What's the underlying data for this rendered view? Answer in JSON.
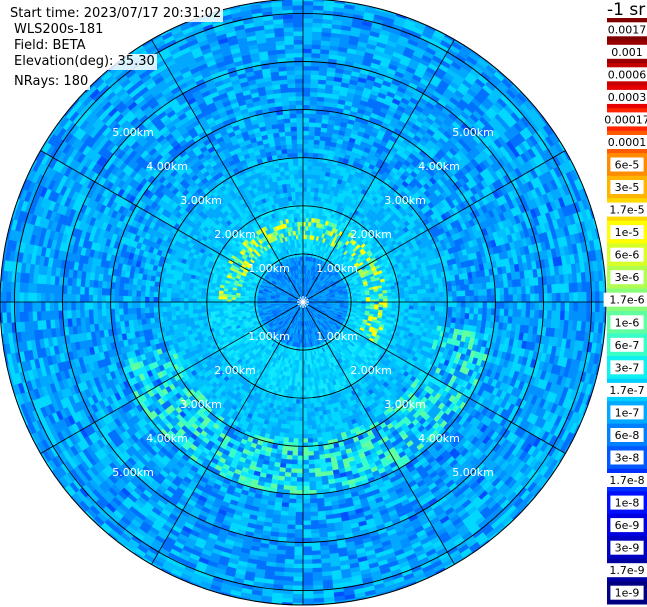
{
  "header": {
    "start_time": "Start time: 2023/07/17 20:31:02",
    "instrument": "WLS200s-181",
    "field": "Field: BETA",
    "elevation": "Elevation(deg): 35.30",
    "nrays": "NRays: 180",
    "unit": "-1 sr"
  },
  "chart_data": {
    "type": "heatmap",
    "projection": "polar-ppi",
    "field": "BETA",
    "elevation_deg": 35.3,
    "n_rays": 180,
    "radial_range_km": [
      0,
      6.3
    ],
    "range_rings_km": [
      1,
      2,
      3,
      4,
      5,
      6
    ],
    "ring_labels": [
      "1.00km",
      "2.00km",
      "3.00km",
      "4.00km",
      "5.00km"
    ],
    "spoke_azimuths_deg": [
      0,
      30,
      60,
      90,
      120,
      150,
      180,
      210,
      240,
      270,
      300,
      330
    ],
    "features": [
      {
        "description": "aerosol ring",
        "range_km": [
          1.3,
          1.7
        ],
        "beta": 1e-05,
        "azimuth_deg": [
          270,
          360,
          0,
          120
        ]
      },
      {
        "description": "aerosol arc",
        "range_km": [
          2.8,
          4.0
        ],
        "beta": 1e-06,
        "azimuth_deg": [
          100,
          250
        ]
      }
    ],
    "colorbar": {
      "labels": [
        "0.0017",
        "0.001",
        "0.0006",
        "0.0003",
        "0.00017",
        "0.0001",
        "6e-5",
        "3e-5",
        "1.7e-5",
        "1e-5",
        "6e-6",
        "3e-6",
        "1.7e-6",
        "1e-6",
        "6e-7",
        "3e-7",
        "1.7e-7",
        "1e-7",
        "6e-8",
        "3e-8",
        "1.7e-8",
        "1e-8",
        "6e-9",
        "3e-9",
        "1.7e-9",
        "1e-9"
      ],
      "colors": [
        "#800000",
        "#9a0000",
        "#c40000",
        "#e80000",
        "#ff2400",
        "#ff5a00",
        "#ff8c00",
        "#ffb400",
        "#ffd800",
        "#ffff00",
        "#d8ff28",
        "#b0ff50",
        "#88ff78",
        "#60ffa0",
        "#38ffc8",
        "#10f0f0",
        "#00d0ff",
        "#00a8ff",
        "#0080ff",
        "#0058ff",
        "#0030ff",
        "#0010ff",
        "#0000e0",
        "#0000c0",
        "#0000a0",
        "#000080"
      ]
    }
  }
}
